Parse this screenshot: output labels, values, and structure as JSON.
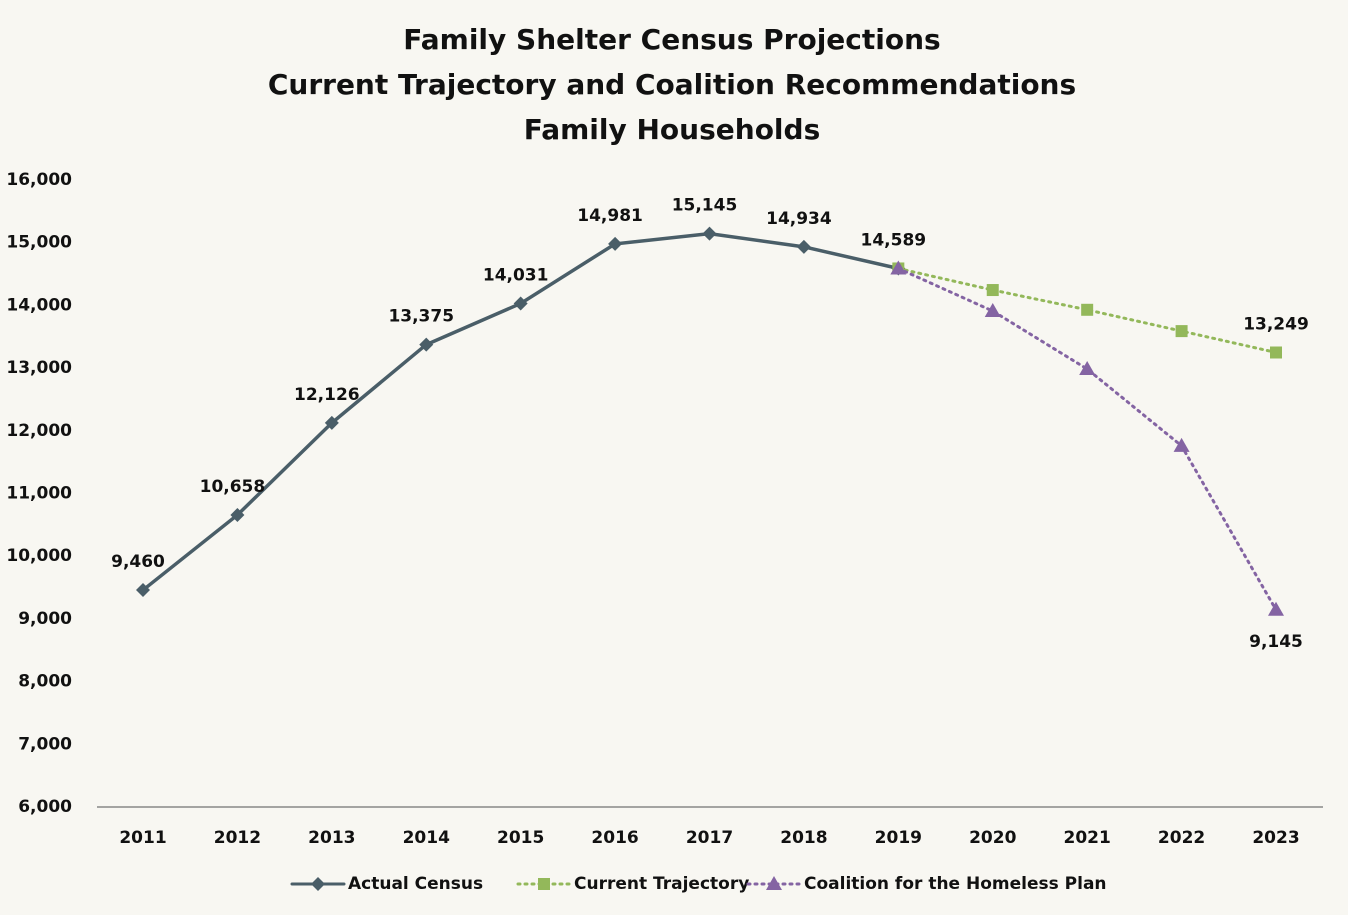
{
  "chart_data": {
    "type": "line",
    "title": [
      "Family Shelter Census Projections",
      "Current Trajectory and Coalition Recommendations",
      "Family Households"
    ],
    "categories": [
      "2011",
      "2012",
      "2013",
      "2014",
      "2015",
      "2016",
      "2017",
      "2018",
      "2019",
      "2020",
      "2021",
      "2022",
      "2023"
    ],
    "series": [
      {
        "name": "Actual Census",
        "color": "#4a5e68",
        "line_style": "solid",
        "marker": "diamond",
        "values": [
          9460,
          10658,
          12126,
          13375,
          14031,
          14981,
          15145,
          14934,
          14589,
          null,
          null,
          null,
          null
        ],
        "value_labels": [
          "9,460",
          "10,658",
          "12,126",
          "13,375",
          "14,031",
          "14,981",
          "15,145",
          "14,934",
          "14,589",
          null,
          null,
          null,
          null
        ]
      },
      {
        "name": "Current Trajectory",
        "color": "#93b85a",
        "line_style": "dotted",
        "marker": "square",
        "values": [
          null,
          null,
          null,
          null,
          null,
          null,
          null,
          null,
          14589,
          14245,
          13930,
          13590,
          13249
        ],
        "value_labels": [
          null,
          null,
          null,
          null,
          null,
          null,
          null,
          null,
          null,
          null,
          null,
          null,
          "13,249"
        ]
      },
      {
        "name": "Coalition for the Homeless Plan",
        "color": "#8464a3",
        "line_style": "dotted",
        "marker": "triangle",
        "values": [
          null,
          null,
          null,
          null,
          null,
          null,
          null,
          null,
          14589,
          13910,
          12985,
          11760,
          9145
        ],
        "value_labels": [
          null,
          null,
          null,
          null,
          null,
          null,
          null,
          null,
          null,
          null,
          null,
          null,
          "9,145"
        ]
      }
    ],
    "ylim": [
      6000,
      16000
    ],
    "yticks": [
      {
        "value": 6000,
        "label": "6,000"
      },
      {
        "value": 7000,
        "label": "7,000"
      },
      {
        "value": 8000,
        "label": "8,000"
      },
      {
        "value": 9000,
        "label": "9,000"
      },
      {
        "value": 10000,
        "label": "10,000"
      },
      {
        "value": 11000,
        "label": "11,000"
      },
      {
        "value": 12000,
        "label": "12,000"
      },
      {
        "value": 13000,
        "label": "13,000"
      },
      {
        "value": 14000,
        "label": "14,000"
      },
      {
        "value": 15000,
        "label": "15,000"
      },
      {
        "value": 16000,
        "label": "16,000"
      }
    ],
    "grid": false,
    "legend": "bottom"
  }
}
